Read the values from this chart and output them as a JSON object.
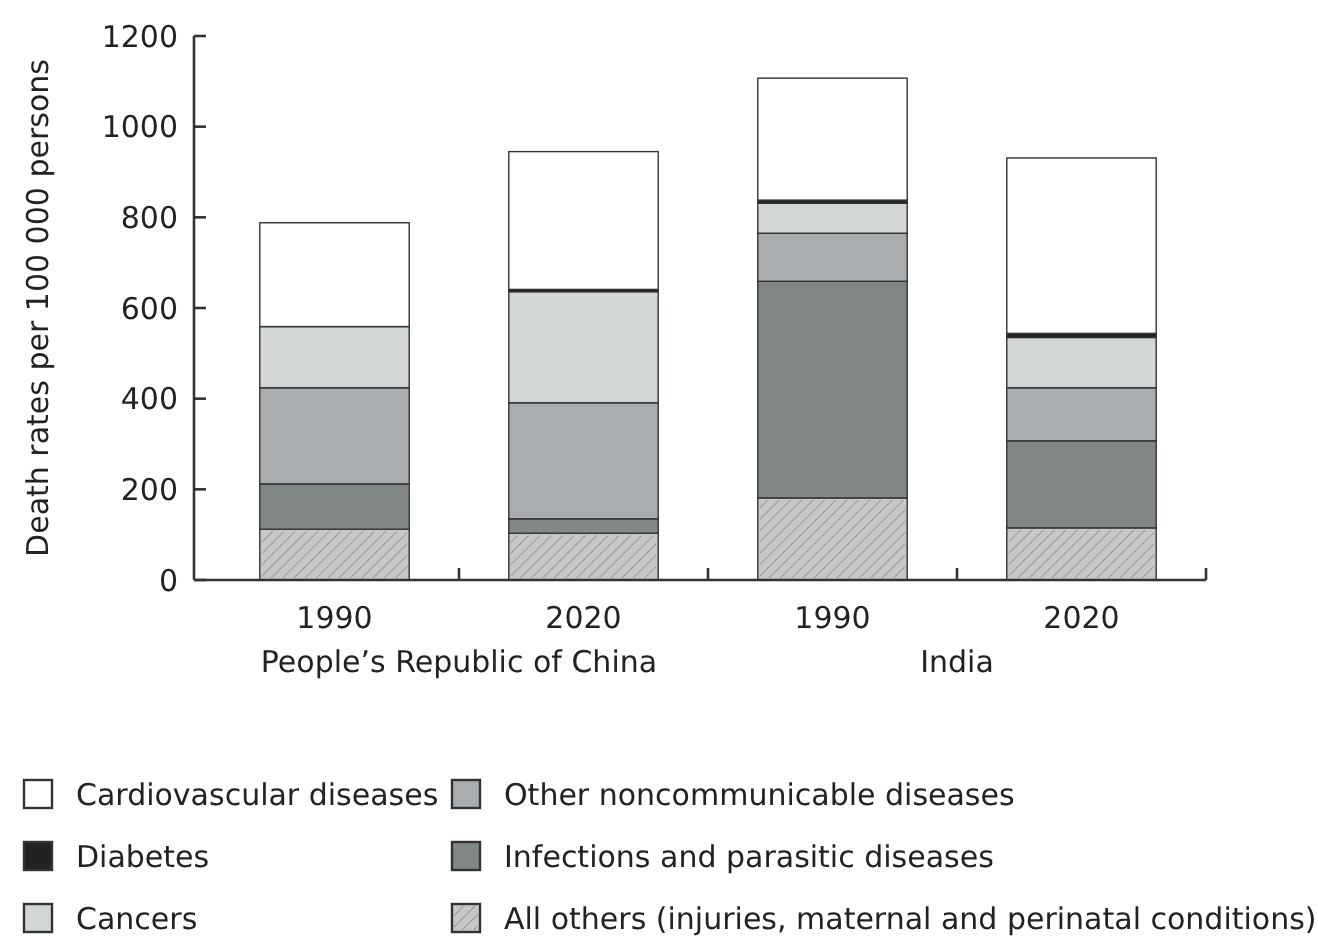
{
  "chart_data": {
    "type": "bar",
    "stacked": true,
    "ylabel": "Death rates per 100 000 persons",
    "categories": [
      "1990",
      "2020",
      "1990",
      "2020"
    ],
    "annotations": [
      "People’s Republic of China",
      "India"
    ],
    "ylim": [
      0,
      1200
    ],
    "yticks": [
      0,
      200,
      400,
      600,
      800,
      1000,
      1200
    ],
    "grid": false,
    "legend": "bottom",
    "series": [
      {
        "name": "All others (injuries, maternal and perinatal conditions)",
        "color": "#c8c8c8",
        "values": [
          112,
          103,
          181,
          115
        ]
      },
      {
        "name": "Infections and parasitic diseases",
        "color": "#808784",
        "values": [
          100,
          32,
          478,
          192
        ]
      },
      {
        "name": "Other noncommunicable diseases",
        "color": "#a9adaf",
        "values": [
          212,
          256,
          106,
          117
        ]
      },
      {
        "name": "Cancers",
        "color": "#d3d6d7",
        "values": [
          135,
          245,
          66,
          111
        ]
      },
      {
        "name": "Diabetes",
        "color": "#222222",
        "values": [
          null,
          5,
          7,
          9
        ]
      },
      {
        "name": "Cardiovascular diseases",
        "color": "#ffffff",
        "values": [
          229,
          304,
          269,
          387
        ]
      }
    ]
  }
}
